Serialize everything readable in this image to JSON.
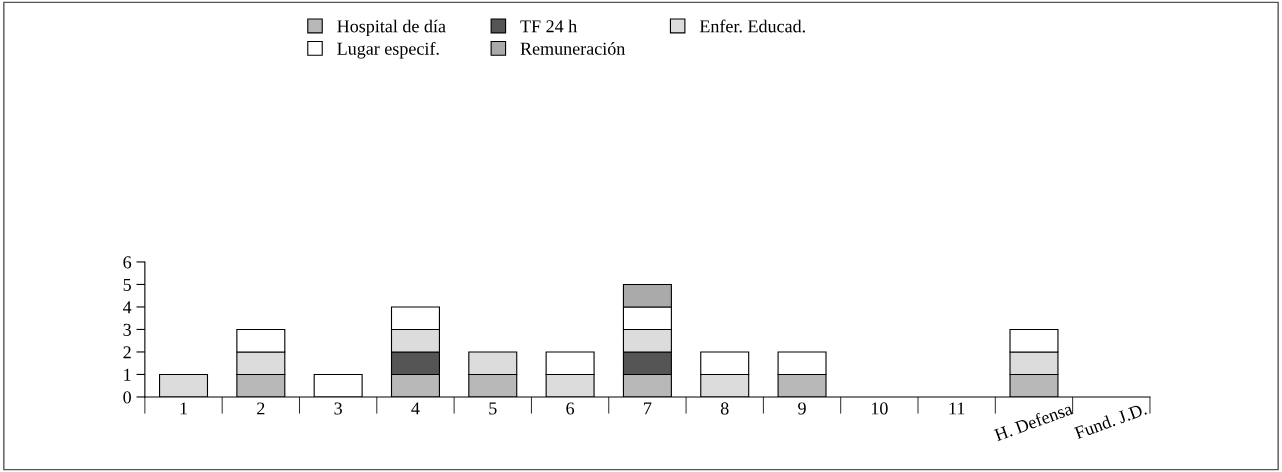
{
  "chart_data": {
    "type": "bar",
    "stacked": true,
    "categories": [
      "1",
      "2",
      "3",
      "4",
      "5",
      "6",
      "7",
      "8",
      "9",
      "10",
      "11",
      "H. Defensa",
      "Fund. J.D."
    ],
    "series": [
      {
        "name": "Hospital de día",
        "color": "#b8b8b8",
        "values": [
          null,
          1,
          null,
          1,
          1,
          null,
          1,
          null,
          1,
          null,
          null,
          1,
          null
        ]
      },
      {
        "name": "TF 24 h",
        "color": "#555555",
        "values": [
          null,
          null,
          null,
          1,
          null,
          null,
          1,
          null,
          null,
          null,
          null,
          null,
          null
        ]
      },
      {
        "name": "Enfer. Educad.",
        "color": "#dcdcdc",
        "values": [
          1,
          1,
          null,
          1,
          1,
          1,
          1,
          1,
          null,
          null,
          null,
          1,
          null
        ]
      },
      {
        "name": "Lugar especif.",
        "color": "#ffffff",
        "values": [
          null,
          1,
          1,
          1,
          null,
          1,
          1,
          1,
          1,
          null,
          null,
          1,
          null
        ]
      },
      {
        "name": "Remuneración",
        "color": "#aaaaaa",
        "values": [
          null,
          null,
          null,
          null,
          null,
          null,
          1,
          null,
          null,
          null,
          null,
          null,
          null
        ]
      }
    ],
    "ylim": [
      0,
      6
    ],
    "yticks": [
      0,
      1,
      2,
      3,
      4,
      5,
      6
    ],
    "grid": false,
    "legend": "top"
  }
}
